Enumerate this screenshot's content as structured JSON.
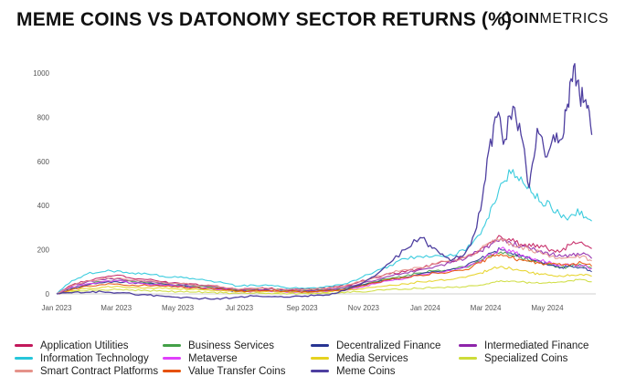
{
  "header": {
    "title": "MEME COINS VS DATONOMY SECTOR RETURNS (%)",
    "brand_bold": "COIN",
    "brand_light": "METRICS"
  },
  "chart_data": {
    "type": "line",
    "title": "MEME COINS VS DATONOMY SECTOR RETURNS (%)",
    "xlabel": "",
    "ylabel": "",
    "ylim": [
      0,
      1050
    ],
    "yticks": [
      0,
      200,
      400,
      600,
      800,
      1000
    ],
    "xlim": [
      0,
      534
    ],
    "xticks": [
      {
        "label": "Jan 2023",
        "t": 0
      },
      {
        "label": "Mar 2023",
        "t": 59
      },
      {
        "label": "May 2023",
        "t": 120
      },
      {
        "label": "Jul 2023",
        "t": 181
      },
      {
        "label": "Sep 2023",
        "t": 243
      },
      {
        "label": "Nov 2023",
        "t": 304
      },
      {
        "label": "Jan 2024",
        "t": 365
      },
      {
        "label": "Mar 2024",
        "t": 425
      },
      {
        "label": "May 2024",
        "t": 486
      }
    ],
    "grid": false,
    "legend_position": "bottom",
    "series": [
      {
        "name": "Application Utilities",
        "color": "#c2185b",
        "t": [
          0,
          15,
          30,
          45,
          60,
          75,
          90,
          105,
          120,
          135,
          150,
          165,
          180,
          195,
          210,
          225,
          240,
          255,
          270,
          285,
          300,
          315,
          330,
          345,
          360,
          375,
          390,
          405,
          420,
          430,
          440,
          450,
          460,
          470,
          480,
          490,
          500,
          510,
          520,
          530
        ],
        "values": [
          0,
          40,
          60,
          75,
          85,
          70,
          65,
          55,
          50,
          45,
          40,
          30,
          20,
          25,
          25,
          20,
          20,
          22,
          30,
          35,
          55,
          75,
          90,
          100,
          115,
          135,
          150,
          165,
          205,
          235,
          260,
          240,
          225,
          215,
          220,
          200,
          195,
          225,
          235,
          205
        ]
      },
      {
        "name": "Business Services",
        "color": "#43a047",
        "t": [
          0,
          15,
          30,
          45,
          60,
          75,
          90,
          105,
          120,
          135,
          150,
          165,
          180,
          195,
          210,
          225,
          240,
          255,
          270,
          285,
          300,
          315,
          330,
          345,
          360,
          375,
          390,
          405,
          420,
          430,
          440,
          450,
          460,
          470,
          480,
          490,
          500,
          510,
          520,
          530
        ],
        "values": [
          0,
          30,
          45,
          55,
          60,
          55,
          50,
          45,
          40,
          35,
          30,
          25,
          15,
          20,
          20,
          18,
          15,
          15,
          20,
          25,
          40,
          55,
          70,
          80,
          95,
          105,
          110,
          120,
          150,
          175,
          190,
          175,
          165,
          150,
          140,
          130,
          120,
          125,
          130,
          115
        ]
      },
      {
        "name": "Decentralized Finance",
        "color": "#283593",
        "t": [
          0,
          15,
          30,
          45,
          60,
          75,
          90,
          105,
          120,
          135,
          150,
          165,
          180,
          195,
          210,
          225,
          240,
          255,
          270,
          285,
          300,
          315,
          330,
          345,
          360,
          375,
          390,
          405,
          420,
          430,
          440,
          450,
          460,
          470,
          480,
          490,
          500,
          510,
          520,
          530
        ],
        "values": [
          0,
          25,
          40,
          50,
          55,
          50,
          45,
          40,
          35,
          30,
          25,
          20,
          12,
          15,
          15,
          12,
          10,
          10,
          15,
          20,
          35,
          50,
          65,
          75,
          90,
          100,
          110,
          125,
          160,
          185,
          200,
          185,
          170,
          155,
          145,
          130,
          120,
          125,
          120,
          100
        ]
      },
      {
        "name": "Intermediated Finance",
        "color": "#8e24aa",
        "t": [
          0,
          15,
          30,
          45,
          60,
          75,
          90,
          105,
          120,
          135,
          150,
          165,
          180,
          195,
          210,
          225,
          240,
          255,
          270,
          285,
          300,
          315,
          330,
          345,
          360,
          375,
          390,
          405,
          420,
          430,
          440,
          450,
          460,
          470,
          480,
          490,
          500,
          510,
          520,
          530
        ],
        "values": [
          0,
          35,
          55,
          65,
          70,
          60,
          55,
          50,
          45,
          40,
          35,
          28,
          18,
          20,
          20,
          18,
          15,
          15,
          22,
          28,
          45,
          60,
          80,
          95,
          110,
          125,
          140,
          160,
          195,
          225,
          250,
          230,
          215,
          200,
          195,
          180,
          170,
          175,
          180,
          160
        ]
      },
      {
        "name": "Information Technology",
        "color": "#26c6da",
        "t": [
          0,
          15,
          30,
          45,
          60,
          75,
          90,
          105,
          120,
          135,
          150,
          165,
          180,
          195,
          210,
          225,
          240,
          255,
          270,
          285,
          300,
          315,
          330,
          345,
          360,
          375,
          390,
          405,
          420,
          430,
          440,
          450,
          460,
          470,
          480,
          490,
          500,
          510,
          520,
          530
        ],
        "values": [
          0,
          60,
          90,
          100,
          105,
          95,
          90,
          80,
          75,
          70,
          60,
          50,
          35,
          40,
          38,
          30,
          25,
          28,
          35,
          45,
          70,
          100,
          130,
          160,
          170,
          175,
          180,
          195,
          270,
          390,
          500,
          545,
          530,
          460,
          415,
          390,
          345,
          360,
          375,
          330
        ]
      },
      {
        "name": "Metaverse",
        "color": "#e040fb",
        "t": [
          0,
          15,
          30,
          45,
          60,
          75,
          90,
          105,
          120,
          135,
          150,
          165,
          180,
          195,
          210,
          225,
          240,
          255,
          270,
          285,
          300,
          315,
          330,
          345,
          360,
          375,
          390,
          405,
          420,
          430,
          440,
          450,
          460,
          470,
          480,
          490,
          500,
          510,
          520,
          530
        ],
        "values": [
          0,
          30,
          45,
          55,
          60,
          50,
          45,
          40,
          35,
          30,
          25,
          20,
          10,
          12,
          12,
          10,
          8,
          8,
          12,
          18,
          30,
          45,
          60,
          70,
          85,
          95,
          105,
          120,
          150,
          180,
          205,
          190,
          175,
          160,
          150,
          140,
          130,
          135,
          130,
          115
        ]
      },
      {
        "name": "Media Services",
        "color": "#e6d21f",
        "t": [
          0,
          15,
          30,
          45,
          60,
          75,
          90,
          105,
          120,
          135,
          150,
          165,
          180,
          195,
          210,
          225,
          240,
          255,
          270,
          285,
          300,
          315,
          330,
          345,
          360,
          375,
          390,
          405,
          420,
          430,
          440,
          450,
          460,
          470,
          480,
          490,
          500,
          510,
          520,
          530
        ],
        "values": [
          0,
          15,
          25,
          30,
          35,
          30,
          28,
          25,
          22,
          20,
          18,
          15,
          10,
          12,
          12,
          10,
          8,
          8,
          10,
          14,
          22,
          30,
          40,
          45,
          55,
          60,
          65,
          75,
          95,
          110,
          125,
          115,
          105,
          95,
          90,
          85,
          80,
          85,
          88,
          80
        ]
      },
      {
        "name": "Specialized Coins",
        "color": "#cddc39",
        "t": [
          0,
          15,
          30,
          45,
          60,
          75,
          90,
          105,
          120,
          135,
          150,
          165,
          180,
          195,
          210,
          225,
          240,
          255,
          270,
          285,
          300,
          315,
          330,
          345,
          360,
          375,
          390,
          405,
          420,
          430,
          440,
          450,
          460,
          470,
          480,
          490,
          500,
          510,
          520,
          530
        ],
        "values": [
          0,
          10,
          15,
          18,
          20,
          18,
          15,
          12,
          10,
          8,
          6,
          5,
          2,
          3,
          3,
          2,
          1,
          1,
          3,
          5,
          10,
          15,
          20,
          22,
          25,
          28,
          30,
          32,
          40,
          50,
          60,
          58,
          55,
          50,
          48,
          50,
          55,
          60,
          65,
          55
        ]
      },
      {
        "name": "Smart Contract Platforms",
        "color": "#e5928a",
        "t": [
          0,
          15,
          30,
          45,
          60,
          75,
          90,
          105,
          120,
          135,
          150,
          165,
          180,
          195,
          210,
          225,
          240,
          255,
          270,
          285,
          300,
          315,
          330,
          345,
          360,
          375,
          390,
          405,
          420,
          430,
          440,
          450,
          460,
          470,
          480,
          490,
          500,
          510,
          520,
          530
        ],
        "values": [
          0,
          38,
          58,
          68,
          72,
          62,
          58,
          52,
          48,
          42,
          38,
          30,
          20,
          24,
          24,
          20,
          18,
          20,
          28,
          35,
          55,
          75,
          95,
          110,
          120,
          135,
          150,
          165,
          200,
          230,
          250,
          230,
          215,
          200,
          185,
          170,
          160,
          165,
          170,
          150
        ]
      },
      {
        "name": "Value Transfer Coins",
        "color": "#e65100",
        "t": [
          0,
          15,
          30,
          45,
          60,
          75,
          90,
          105,
          120,
          135,
          150,
          165,
          180,
          195,
          210,
          225,
          240,
          255,
          270,
          285,
          300,
          315,
          330,
          345,
          360,
          375,
          390,
          405,
          420,
          430,
          440,
          450,
          460,
          470,
          480,
          490,
          500,
          510,
          520,
          530
        ],
        "values": [
          0,
          20,
          35,
          42,
          45,
          40,
          38,
          35,
          30,
          28,
          25,
          20,
          12,
          15,
          15,
          12,
          10,
          10,
          15,
          20,
          35,
          50,
          65,
          75,
          85,
          95,
          100,
          110,
          140,
          165,
          180,
          165,
          155,
          145,
          140,
          135,
          130,
          135,
          140,
          125
        ]
      },
      {
        "name": "Meme Coins",
        "color": "#4e3fa0",
        "t": [
          0,
          15,
          30,
          45,
          60,
          75,
          90,
          105,
          120,
          135,
          150,
          165,
          180,
          195,
          210,
          225,
          240,
          255,
          270,
          285,
          300,
          315,
          330,
          345,
          360,
          370,
          380,
          390,
          400,
          410,
          420,
          428,
          436,
          444,
          452,
          460,
          468,
          476,
          484,
          492,
          500,
          506,
          512,
          518,
          524,
          530
        ],
        "values": [
          0,
          5,
          8,
          10,
          5,
          0,
          -5,
          -10,
          -15,
          -20,
          -22,
          -20,
          -15,
          -10,
          -12,
          -15,
          -10,
          -8,
          -5,
          15,
          40,
          80,
          140,
          200,
          255,
          220,
          180,
          150,
          170,
          220,
          380,
          650,
          800,
          700,
          850,
          720,
          480,
          750,
          620,
          720,
          700,
          860,
          1030,
          900,
          880,
          720
        ]
      }
    ]
  }
}
